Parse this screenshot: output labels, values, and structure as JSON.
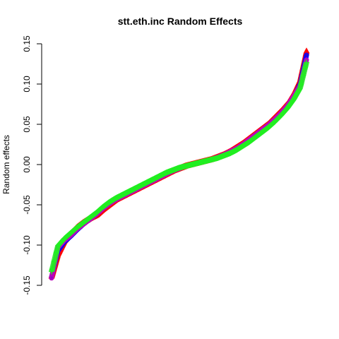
{
  "chart_data": {
    "type": "scatter",
    "title": "stt.eth.inc Random Effects",
    "xlabel": "",
    "ylabel": "Random effects",
    "ylim": [
      -0.15,
      0.15
    ],
    "yticks": [
      "-0.15",
      "-0.10",
      "-0.05",
      "0.00",
      "0.05",
      "0.10",
      "0.15"
    ],
    "grid": false,
    "legend": "none",
    "n_points": 1400,
    "series": [
      {
        "marker": "triangle",
        "color": "#ff0000",
        "sorted_values": [
          -0.139,
          -0.111,
          -0.095,
          -0.086,
          -0.078,
          -0.072,
          -0.067,
          -0.063,
          -0.056,
          -0.05,
          -0.044,
          -0.04,
          -0.036,
          -0.032,
          -0.028,
          -0.024,
          -0.02,
          -0.016,
          -0.012,
          -0.008,
          -0.005,
          -0.002,
          0.0,
          0.002,
          0.004,
          0.006,
          0.009,
          0.012,
          0.016,
          0.021,
          0.026,
          0.032,
          0.038,
          0.044,
          0.05,
          0.058,
          0.066,
          0.075,
          0.088,
          0.105,
          0.141
        ]
      },
      {
        "marker": "circle",
        "color": "#0000ff",
        "sorted_values": [
          -0.14,
          -0.107,
          -0.096,
          -0.089,
          -0.081,
          -0.074,
          -0.068,
          -0.062,
          -0.055,
          -0.049,
          -0.043,
          -0.039,
          -0.035,
          -0.031,
          -0.027,
          -0.023,
          -0.019,
          -0.015,
          -0.011,
          -0.007,
          -0.004,
          -0.002,
          0.0,
          0.002,
          0.004,
          0.006,
          0.008,
          0.011,
          0.015,
          0.019,
          0.024,
          0.03,
          0.036,
          0.042,
          0.048,
          0.055,
          0.063,
          0.072,
          0.084,
          0.1,
          0.136
        ]
      },
      {
        "marker": "circle",
        "color": "#bb00bb",
        "sorted_values": [
          -0.141,
          -0.103,
          -0.094,
          -0.088,
          -0.08,
          -0.074,
          -0.068,
          -0.062,
          -0.055,
          -0.049,
          -0.044,
          -0.04,
          -0.036,
          -0.032,
          -0.028,
          -0.024,
          -0.02,
          -0.016,
          -0.012,
          -0.008,
          -0.005,
          -0.002,
          0.0,
          0.002,
          0.004,
          0.006,
          0.009,
          0.012,
          0.016,
          0.02,
          0.025,
          0.031,
          0.037,
          0.043,
          0.049,
          0.056,
          0.064,
          0.073,
          0.085,
          0.098,
          0.13
        ]
      },
      {
        "marker": "plus",
        "color": "#22ee22",
        "sorted_values": [
          -0.133,
          -0.101,
          -0.092,
          -0.085,
          -0.078,
          -0.072,
          -0.066,
          -0.06,
          -0.053,
          -0.047,
          -0.042,
          -0.038,
          -0.034,
          -0.03,
          -0.026,
          -0.022,
          -0.018,
          -0.014,
          -0.01,
          -0.007,
          -0.004,
          -0.002,
          0.0,
          0.002,
          0.004,
          0.006,
          0.008,
          0.011,
          0.014,
          0.018,
          0.023,
          0.028,
          0.034,
          0.04,
          0.046,
          0.053,
          0.061,
          0.07,
          0.081,
          0.095,
          0.127
        ]
      }
    ]
  }
}
